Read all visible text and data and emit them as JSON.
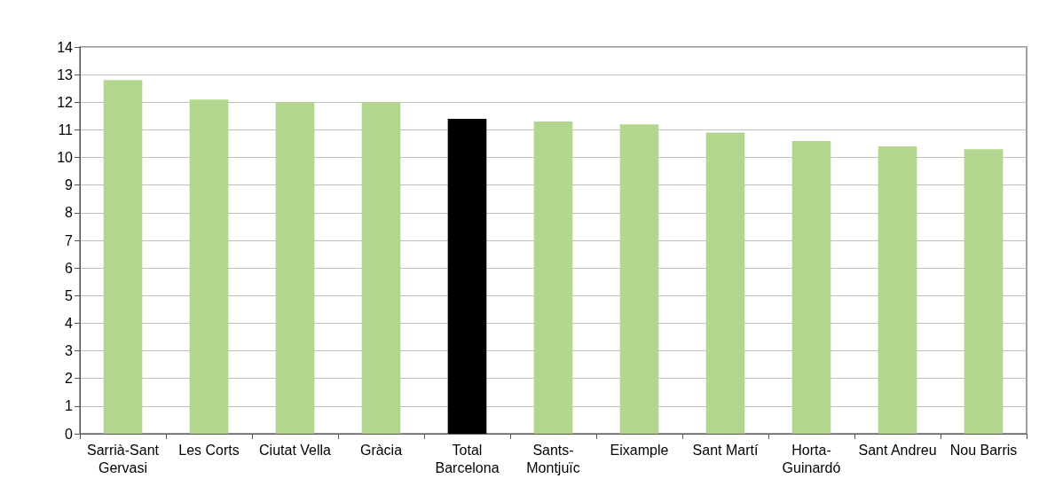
{
  "chart_data": {
    "type": "bar",
    "categories": [
      "Sarrià-Sant\nGervasi",
      "Les Corts",
      "Ciutat Vella",
      "Gràcia",
      "Total\nBarcelona",
      "Sants-\nMontjuïc",
      "Eixample",
      "Sant Martí",
      "Horta-\nGuinardó",
      "Sant Andreu",
      "Nou Barris"
    ],
    "values": [
      12.8,
      12.1,
      12.0,
      12.0,
      11.4,
      11.3,
      11.2,
      10.9,
      10.6,
      10.4,
      10.3
    ],
    "colors": [
      "#b3d68e",
      "#b3d68e",
      "#b3d68e",
      "#b3d68e",
      "#000000",
      "#b3d68e",
      "#b3d68e",
      "#b3d68e",
      "#b3d68e",
      "#b3d68e",
      "#b3d68e"
    ],
    "ylim": [
      0,
      14
    ],
    "yticks": [
      0,
      1,
      2,
      3,
      4,
      5,
      6,
      7,
      8,
      9,
      10,
      11,
      12,
      13,
      14
    ],
    "grid": "y"
  }
}
